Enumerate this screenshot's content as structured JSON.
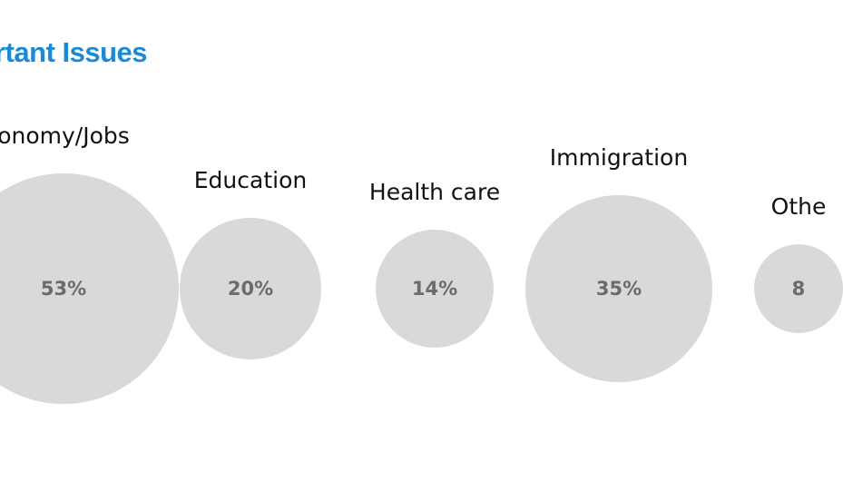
{
  "chart_data": {
    "type": "bubble",
    "title": "rtant Issues",
    "categories": [
      "onomy/Jobs",
      "Education",
      "Health care",
      "Immigration",
      "Othe"
    ],
    "values": [
      53,
      20,
      14,
      35,
      8
    ],
    "value_labels": [
      "53%",
      "20%",
      "14%",
      "35%",
      "8"
    ],
    "unit": "%",
    "colors": {
      "title": "#1a8ad4",
      "bubble": "#d9d9d9",
      "value_text": "#6b6b6b",
      "label_text": "#111111"
    }
  }
}
